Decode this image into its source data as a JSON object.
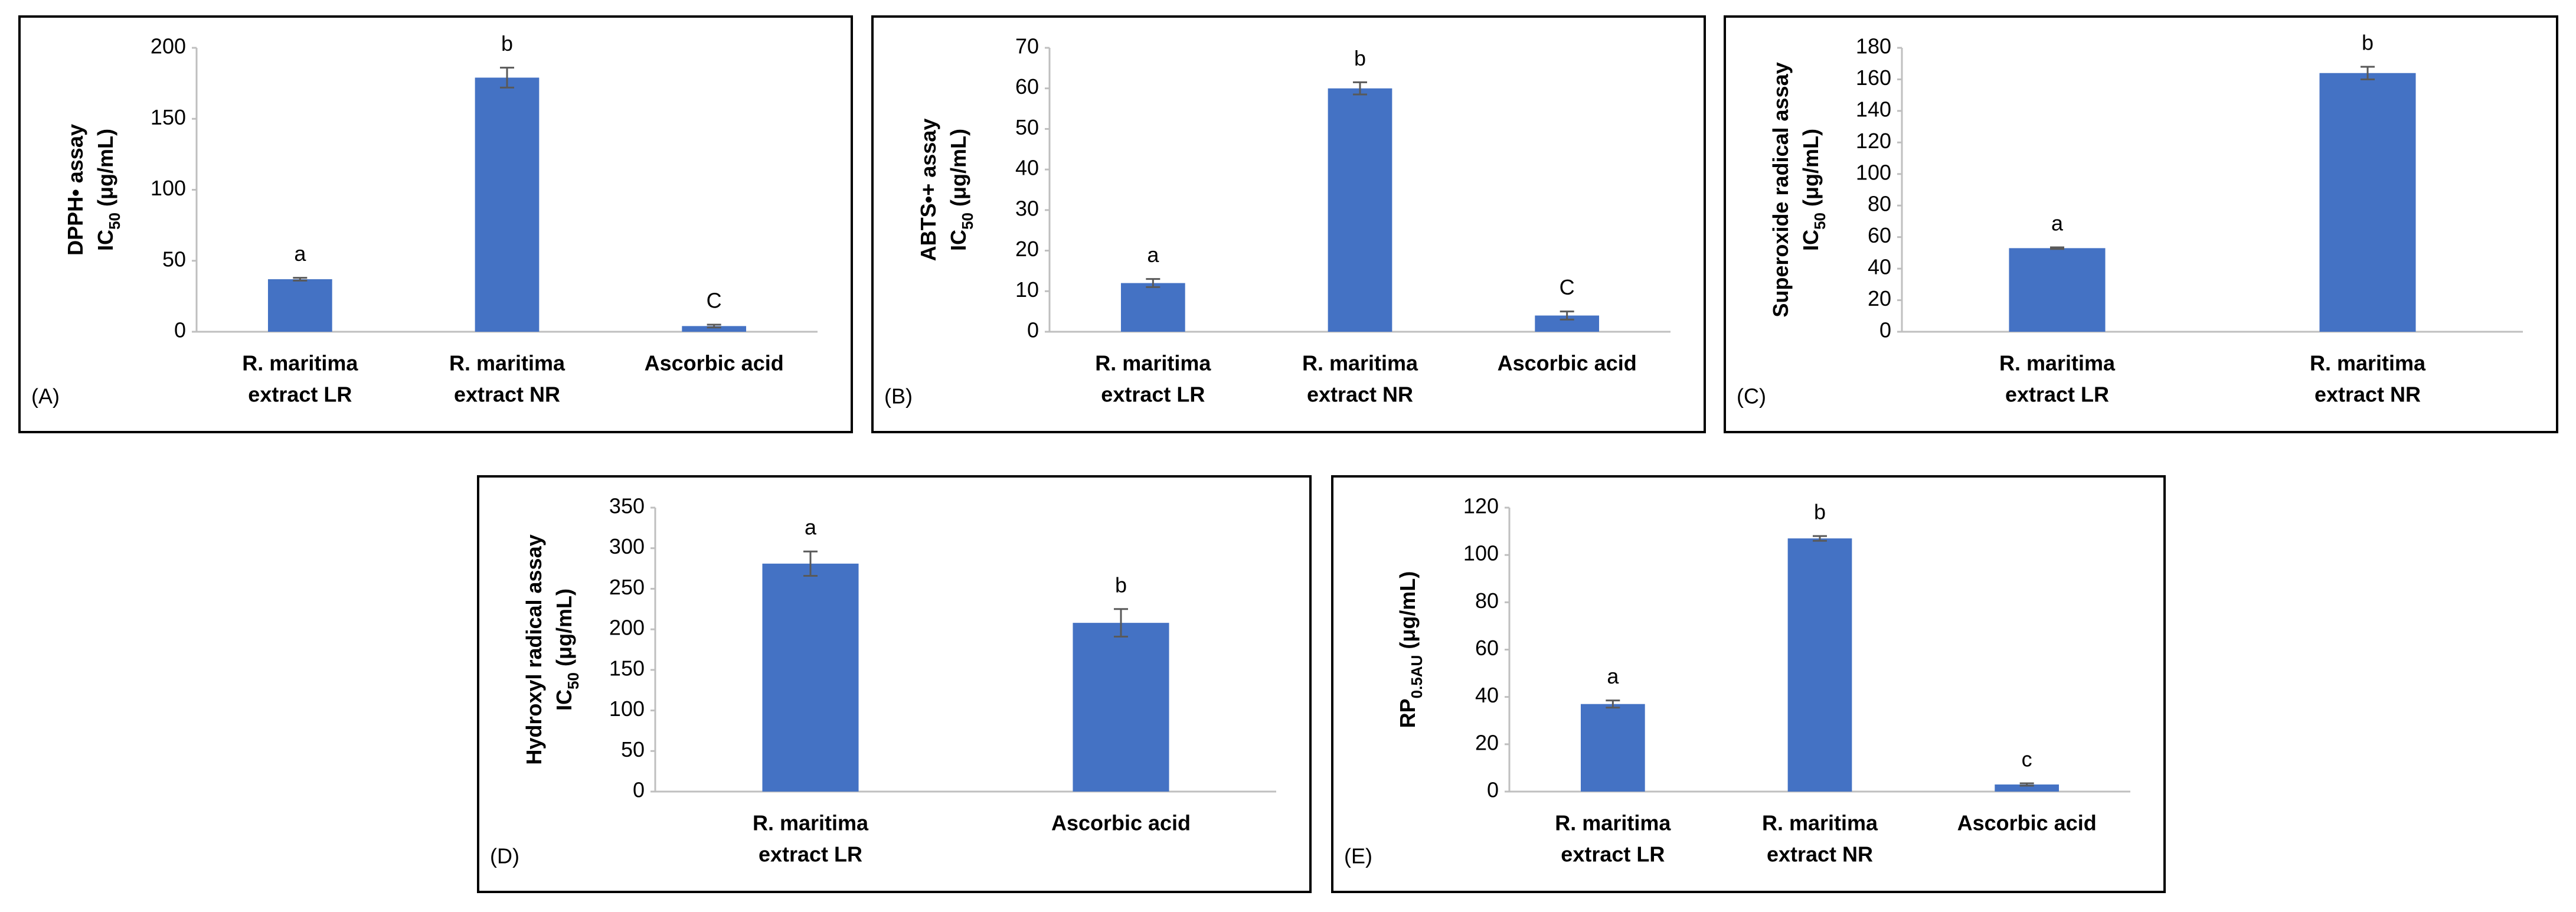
{
  "chart_data": [
    {
      "type": "bar",
      "panel": "(A)",
      "ylabel": [
        [
          "DPPH• assay"
        ],
        [
          "IC",
          "50",
          " (μg/mL)"
        ]
      ],
      "categories": [
        [
          "R. maritima",
          "extract LR"
        ],
        [
          "R. maritima",
          "extract NR"
        ],
        [
          "Ascorbic acid"
        ]
      ],
      "values": [
        37,
        179,
        4
      ],
      "errors": [
        1,
        7,
        1
      ],
      "annotations": [
        "a",
        "b",
        "C"
      ],
      "color": "#4472c4",
      "ylim": [
        0,
        200
      ],
      "yticks": [
        0,
        50,
        100,
        150,
        200
      ]
    },
    {
      "type": "bar",
      "panel": "(B)",
      "ylabel": [
        [
          "ABTS•+ assay"
        ],
        [
          "IC",
          "50",
          " (μg/mL)"
        ]
      ],
      "categories": [
        [
          "R. maritima",
          "extract LR"
        ],
        [
          "R. maritima",
          "extract NR"
        ],
        [
          "Ascorbic acid"
        ]
      ],
      "values": [
        12,
        60,
        4
      ],
      "errors": [
        1,
        1.5,
        1
      ],
      "annotations": [
        "a",
        "b",
        "C"
      ],
      "color": "#4472c4",
      "ylim": [
        0,
        70
      ],
      "yticks": [
        0,
        10,
        20,
        30,
        40,
        50,
        60,
        70
      ]
    },
    {
      "type": "bar",
      "panel": "(C)",
      "ylabel": [
        [
          "Superoxide radical assay"
        ],
        [
          "IC",
          "50",
          " (μg/mL)"
        ]
      ],
      "categories": [
        [
          "R. maritima",
          "extract LR"
        ],
        [
          "R. maritima",
          "extract NR"
        ]
      ],
      "values": [
        53,
        164
      ],
      "errors": [
        0.5,
        4
      ],
      "annotations": [
        "a",
        "b"
      ],
      "color": "#4472c4",
      "ylim": [
        0,
        180
      ],
      "yticks": [
        0,
        20,
        40,
        60,
        80,
        100,
        120,
        140,
        160,
        180
      ]
    },
    {
      "type": "bar",
      "panel": "(D)",
      "ylabel": [
        [
          "Hydroxyl radical assay"
        ],
        [
          "IC",
          "50",
          " (μg/mL)"
        ]
      ],
      "categories": [
        [
          "R. maritima",
          "extract LR"
        ],
        [
          "Ascorbic acid"
        ]
      ],
      "values": [
        281,
        208
      ],
      "errors": [
        15,
        17
      ],
      "annotations": [
        "a",
        "b"
      ],
      "color": "#4472c4",
      "ylim": [
        0,
        350
      ],
      "yticks": [
        0,
        50,
        100,
        150,
        200,
        250,
        300,
        350
      ]
    },
    {
      "type": "bar",
      "panel": "(E)",
      "ylabel": [
        [
          "RP",
          "0.5AU",
          " (μg/mL)"
        ]
      ],
      "categories": [
        [
          "R. maritima",
          "extract LR"
        ],
        [
          "R. maritima",
          "extract NR"
        ],
        [
          "Ascorbic acid"
        ]
      ],
      "values": [
        37,
        107,
        3
      ],
      "errors": [
        1.5,
        1,
        0.5
      ],
      "annotations": [
        "a",
        "b",
        "c"
      ],
      "color": "#4472c4",
      "ylim": [
        0,
        120
      ],
      "yticks": [
        0,
        20,
        40,
        60,
        80,
        100,
        120
      ]
    }
  ]
}
